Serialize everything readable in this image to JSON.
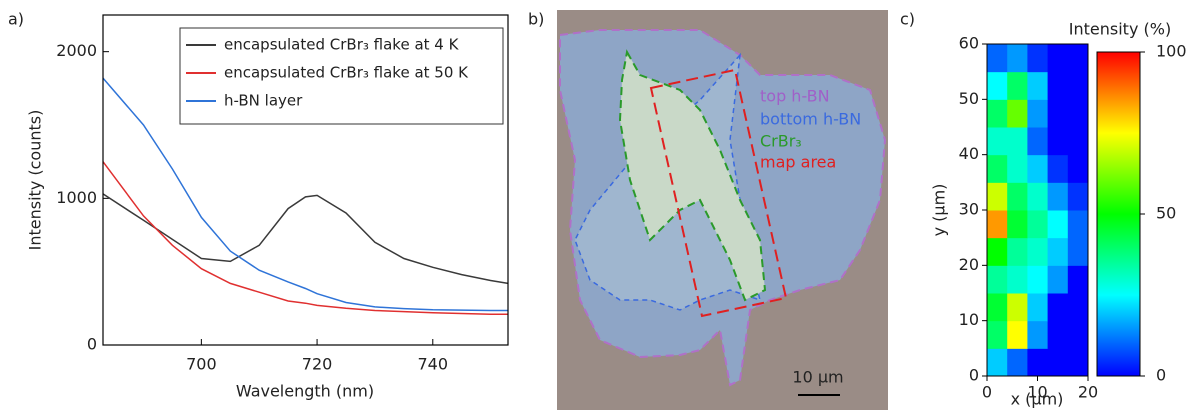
{
  "chart_data": [
    {
      "type": "line",
      "panel_label": "a)",
      "x_label": "Wavelength (nm)",
      "y_label": "Intensity (counts)",
      "x": [
        683,
        690,
        695,
        700,
        705,
        710,
        715,
        718,
        720,
        725,
        730,
        735,
        740,
        745,
        750,
        753
      ],
      "series": [
        {
          "name": "encapsulated CrBr₃ flake at 4 K",
          "color": "#3a3a3a",
          "values": [
            1030,
            850,
            720,
            590,
            570,
            680,
            930,
            1010,
            1020,
            900,
            700,
            590,
            530,
            480,
            440,
            420
          ]
        },
        {
          "name": "encapsulated CrBr₃ flake at 50 K",
          "color": "#e03030",
          "values": [
            1250,
            880,
            680,
            520,
            420,
            360,
            300,
            285,
            270,
            250,
            235,
            228,
            220,
            215,
            210,
            210
          ]
        },
        {
          "name": "h-BN layer",
          "color": "#2f74d8",
          "values": [
            1820,
            1500,
            1200,
            870,
            640,
            510,
            430,
            385,
            350,
            290,
            260,
            248,
            240,
            238,
            235,
            235
          ]
        }
      ],
      "xlim": [
        683,
        753
      ],
      "xticks": [
        700,
        720,
        740
      ],
      "ylim": [
        0,
        2250
      ],
      "yticks": [
        0,
        1000,
        2000
      ],
      "legend": "upper right"
    },
    {
      "type": "heatmap",
      "panel_label": "c)",
      "x_label": "x (µm)",
      "y_label": "y (µm)",
      "colorbar_label": "Intensity (%)",
      "x": [
        2,
        6,
        10,
        14,
        18
      ],
      "y": [
        2.5,
        7.5,
        12.5,
        17.5,
        22.5,
        27.5,
        32.5,
        37.5,
        42.5,
        47.5,
        52.5,
        57.5
      ],
      "z": [
        [
          20,
          10,
          0,
          0,
          0
        ],
        [
          40,
          75,
          15,
          0,
          0
        ],
        [
          45,
          70,
          20,
          0,
          0
        ],
        [
          35,
          30,
          25,
          15,
          0
        ],
        [
          50,
          35,
          30,
          20,
          10
        ],
        [
          85,
          45,
          35,
          25,
          10
        ],
        [
          70,
          40,
          30,
          15,
          5
        ],
        [
          40,
          30,
          20,
          5,
          0
        ],
        [
          30,
          30,
          10,
          0,
          0
        ],
        [
          40,
          60,
          15,
          0,
          0
        ],
        [
          25,
          40,
          20,
          0,
          0
        ],
        [
          10,
          15,
          5,
          0,
          0
        ]
      ],
      "xlim": [
        0,
        20
      ],
      "xticks": [
        0,
        10,
        20
      ],
      "ylim": [
        0,
        60
      ],
      "yticks": [
        0,
        10,
        20,
        30,
        40,
        50,
        60
      ],
      "clim": [
        0,
        100
      ],
      "cticks": [
        0,
        50,
        100
      ],
      "colormap": [
        "#0000ff",
        "#00ffff",
        "#00ff00",
        "#ffff00",
        "#ff0000"
      ]
    }
  ],
  "micrograph": {
    "panel_label": "b)",
    "labels": [
      "top h-BN",
      "bottom h-BN",
      "CrBr₃",
      "map area"
    ],
    "scale_bar": "10 µm"
  }
}
